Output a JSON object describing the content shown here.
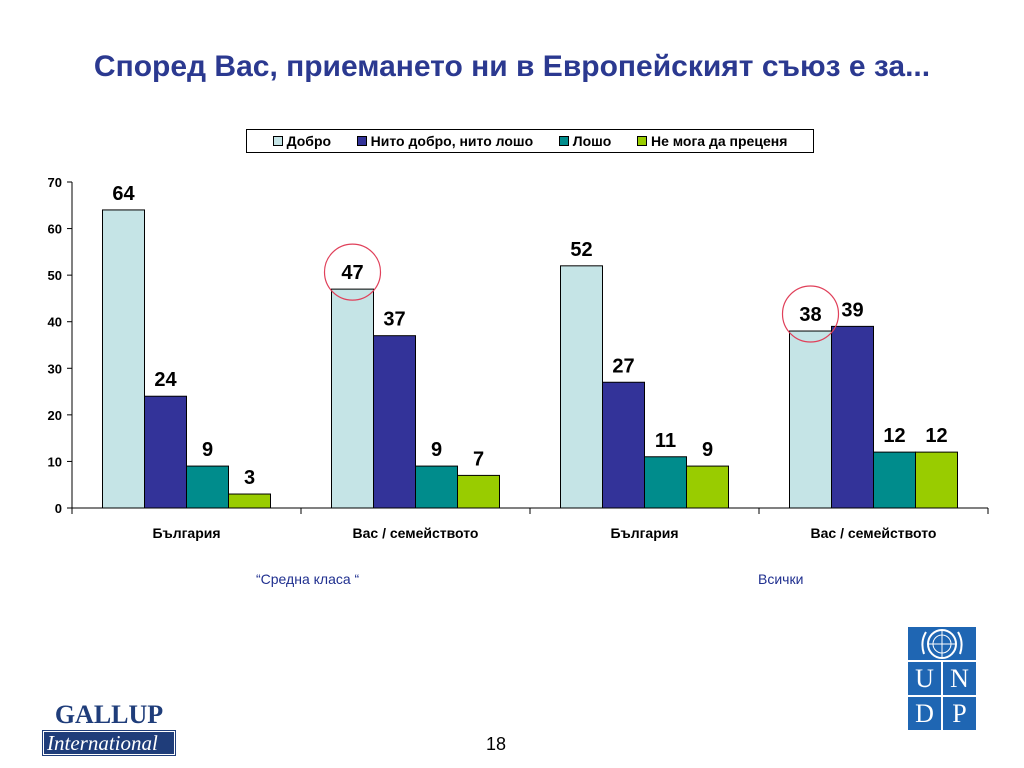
{
  "slide": {
    "title": "Според Вас, приемането ни в Европейският съюз е за...",
    "page_number": "18",
    "group_labels": [
      "“Средна класа “",
      "Всички"
    ]
  },
  "legend": [
    {
      "label": "Добро",
      "color": "#c5e4e6"
    },
    {
      "label": "Нито добро, нито лошо",
      "color": "#333399"
    },
    {
      "label": "Лошо",
      "color": "#008c8c"
    },
    {
      "label": "Не мога да преценя",
      "color": "#99cc00"
    }
  ],
  "logos": {
    "gallup_top": "GALLUP",
    "gallup_bottom": "International",
    "undp_letters": [
      "U",
      "N",
      "D",
      "P"
    ]
  },
  "chart_data": {
    "type": "bar",
    "categories": [
      "България",
      "Вас / семейството",
      "България",
      "Вас / семейството"
    ],
    "series": [
      {
        "name": "Добро",
        "values": [
          64,
          47,
          52,
          38
        ],
        "color": "#c5e4e6"
      },
      {
        "name": "Нито добро, нито лошо",
        "values": [
          24,
          37,
          27,
          39
        ],
        "color": "#333399"
      },
      {
        "name": "Лошо",
        "values": [
          9,
          9,
          11,
          12
        ],
        "color": "#008c8c"
      },
      {
        "name": "Не мога да преценя",
        "values": [
          3,
          7,
          9,
          12
        ],
        "color": "#99cc00"
      }
    ],
    "ylim": [
      0,
      70
    ],
    "yticks": [
      0,
      10,
      20,
      30,
      40,
      50,
      60,
      70
    ],
    "grid": false,
    "legend_position": "top",
    "highlighted": [
      {
        "series": 0,
        "category": 1
      },
      {
        "series": 0,
        "category": 3
      }
    ],
    "highlight_color": "#e0405a"
  }
}
